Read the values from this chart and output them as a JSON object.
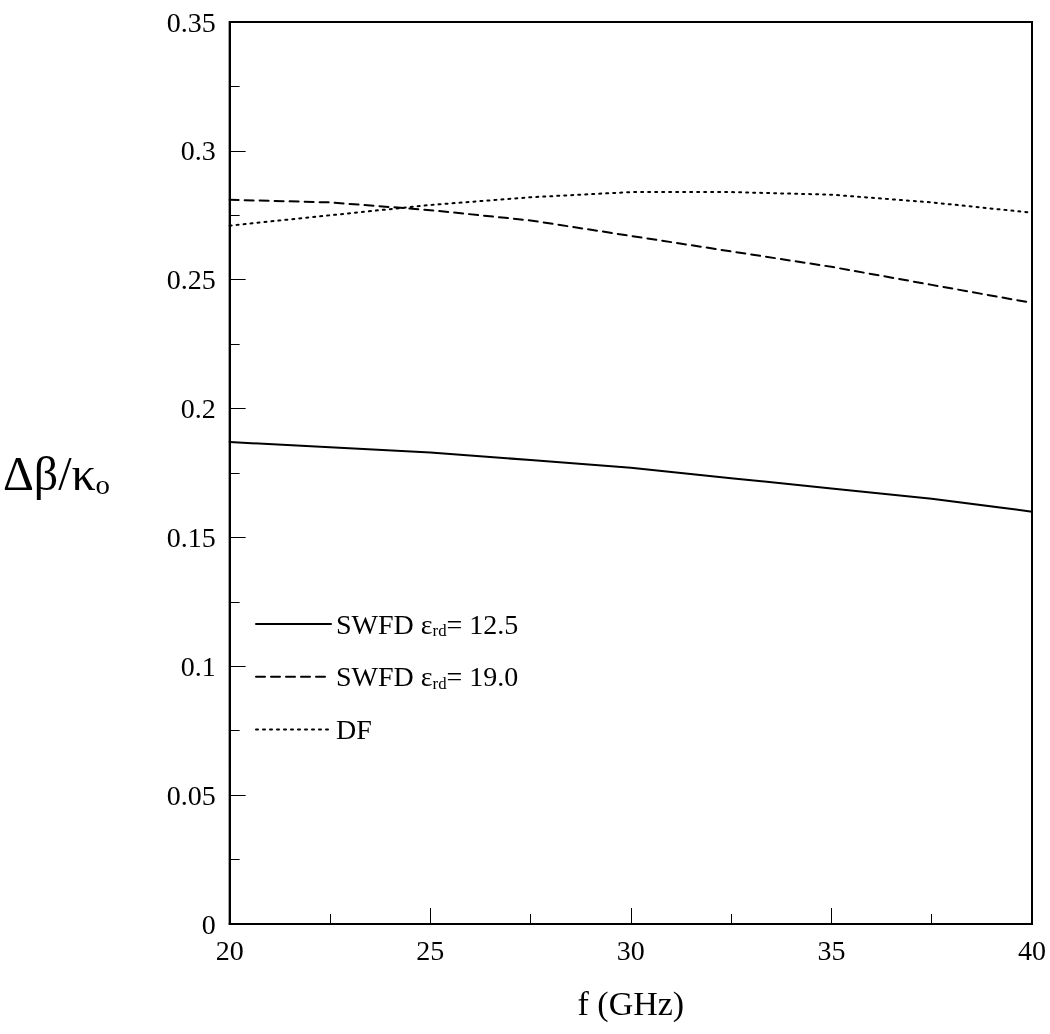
{
  "chart_data": {
    "type": "line",
    "xlabel": "f (GHz)",
    "ylabel": "Δβ/κₒ",
    "x": [
      20,
      22.5,
      25,
      27.5,
      30,
      32.5,
      35,
      37.5,
      40
    ],
    "series": [
      {
        "name": "SWFD ε$_{rd}$= 12.5",
        "color": "#000000",
        "line_style": "solid",
        "values": [
          0.187,
          0.185,
          0.183,
          0.18,
          0.177,
          0.173,
          0.169,
          0.165,
          0.16
        ]
      },
      {
        "name": "SWFD ε$_{rd}$= 19.0",
        "color": "#000000",
        "line_style": "dashed",
        "values": [
          0.281,
          0.28,
          0.277,
          0.273,
          0.267,
          0.261,
          0.255,
          0.248,
          0.241
        ]
      },
      {
        "name": "DF",
        "color": "#000000",
        "line_style": "dotted",
        "values": [
          0.271,
          0.275,
          0.279,
          0.282,
          0.284,
          0.284,
          0.283,
          0.28,
          0.276
        ]
      }
    ],
    "xlim": [
      20,
      40
    ],
    "xticks": [
      20,
      25,
      30,
      35,
      40
    ],
    "ylim": [
      0,
      0.35
    ],
    "yticks": [
      0,
      0.05,
      0.1,
      0.15,
      0.2,
      0.25,
      0.3,
      0.35
    ],
    "grid": false,
    "legend": "bottom left",
    "marker": "none"
  }
}
